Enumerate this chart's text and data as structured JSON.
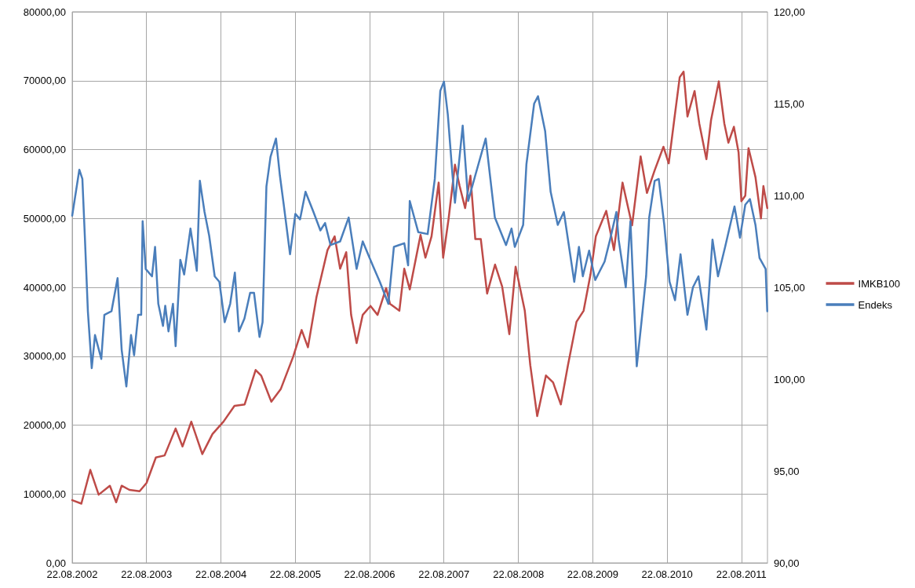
{
  "chart_data": {
    "type": "line",
    "legend": "right",
    "grid": true,
    "marker": "none",
    "line_style": "solid",
    "xlim": [
      "2002-08-22",
      "2011-12-28"
    ],
    "xticks": [
      {
        "value": "2002-08-22",
        "label": "22.08.2002"
      },
      {
        "value": "2003-08-22",
        "label": "22.08.2003"
      },
      {
        "value": "2004-08-22",
        "label": "22.08.2004"
      },
      {
        "value": "2005-08-22",
        "label": "22.08.2005"
      },
      {
        "value": "2006-08-22",
        "label": "22.08.2006"
      },
      {
        "value": "2007-08-22",
        "label": "22.08.2007"
      },
      {
        "value": "2008-08-22",
        "label": "22.08.2008"
      },
      {
        "value": "2009-08-22",
        "label": "22.08.2009"
      },
      {
        "value": "2010-08-22",
        "label": "22.08.2010"
      },
      {
        "value": "2011-08-22",
        "label": "22.08.2011"
      }
    ],
    "ylim": [
      0,
      80000
    ],
    "yticks": [
      {
        "value": 0,
        "label": "0,00"
      },
      {
        "value": 10000,
        "label": "10000,00"
      },
      {
        "value": 20000,
        "label": "20000,00"
      },
      {
        "value": 30000,
        "label": "30000,00"
      },
      {
        "value": 40000,
        "label": "40000,00"
      },
      {
        "value": 50000,
        "label": "50000,00"
      },
      {
        "value": 60000,
        "label": "60000,00"
      },
      {
        "value": 70000,
        "label": "70000,00"
      },
      {
        "value": 80000,
        "label": "80000,00"
      }
    ],
    "y2lim": [
      90,
      120
    ],
    "y2ticks": [
      {
        "value": 90,
        "label": "90,00"
      },
      {
        "value": 95,
        "label": "95,00"
      },
      {
        "value": 100,
        "label": "100,00"
      },
      {
        "value": 105,
        "label": "105,00"
      },
      {
        "value": 110,
        "label": "110,00"
      },
      {
        "value": 115,
        "label": "115,00"
      },
      {
        "value": 120,
        "label": "120,00"
      }
    ],
    "series": [
      {
        "name": "IMKB100",
        "color": "#be4b48",
        "x": [
          "2002-08-22",
          "2002-10-06",
          "2002-11-19",
          "2002-12-30",
          "2003-02-23",
          "2003-03-26",
          "2003-04-22",
          "2003-05-30",
          "2003-07-19",
          "2003-08-22",
          "2003-10-07",
          "2003-11-19",
          "2004-01-12",
          "2004-02-15",
          "2004-03-29",
          "2004-05-22",
          "2004-07-11",
          "2004-09-03",
          "2004-10-27",
          "2004-12-16",
          "2005-02-08",
          "2005-03-07",
          "2005-04-26",
          "2005-06-11",
          "2005-08-11",
          "2005-09-22",
          "2005-10-23",
          "2005-12-04",
          "2006-01-27",
          "2006-03-03",
          "2006-03-30",
          "2006-04-29",
          "2006-05-23",
          "2006-06-19",
          "2006-07-19",
          "2006-08-26",
          "2006-09-30",
          "2006-11-11",
          "2006-11-30",
          "2007-01-15",
          "2007-02-08",
          "2007-03-07",
          "2007-04-29",
          "2007-05-23",
          "2007-06-22",
          "2007-07-27",
          "2007-08-18",
          "2007-09-14",
          "2007-10-15",
          "2007-11-07",
          "2007-12-04",
          "2007-12-30",
          "2008-01-23",
          "2008-02-19",
          "2008-03-21",
          "2008-04-29",
          "2008-06-03",
          "2008-07-08",
          "2008-08-08",
          "2008-09-22",
          "2008-10-19",
          "2008-11-22",
          "2009-01-04",
          "2009-02-08",
          "2009-03-18",
          "2009-04-22",
          "2009-06-03",
          "2009-07-08",
          "2009-08-11",
          "2009-09-06",
          "2009-10-27",
          "2009-12-04",
          "2010-01-15",
          "2010-03-03",
          "2010-04-14",
          "2010-05-15",
          "2010-06-22",
          "2010-08-04",
          "2010-08-30",
          "2010-09-26",
          "2010-10-23",
          "2010-11-11",
          "2010-11-30",
          "2011-01-04",
          "2011-01-27",
          "2011-03-03",
          "2011-03-26",
          "2011-05-03",
          "2011-05-30",
          "2011-06-19",
          "2011-07-16",
          "2011-08-08",
          "2011-08-22",
          "2011-09-10",
          "2011-09-26",
          "2011-10-30",
          "2011-11-26",
          "2011-12-08",
          "2011-12-27"
        ],
        "values": [
          9100,
          8600,
          13500,
          9900,
          11200,
          8800,
          11200,
          10600,
          10400,
          11600,
          15300,
          15600,
          19500,
          16900,
          20500,
          15800,
          18700,
          20500,
          22800,
          23000,
          28000,
          27200,
          23400,
          25200,
          29900,
          33800,
          31300,
          38600,
          45400,
          47400,
          42700,
          45100,
          36000,
          31900,
          36000,
          37300,
          36000,
          39900,
          37600,
          36600,
          42700,
          39700,
          47600,
          44300,
          47400,
          55200,
          44300,
          50000,
          57800,
          54700,
          51500,
          56200,
          47000,
          47000,
          39100,
          43300,
          40100,
          33200,
          43000,
          36600,
          28700,
          21300,
          27200,
          26200,
          23000,
          28700,
          35000,
          36600,
          41900,
          47400,
          51100,
          45400,
          55200,
          49000,
          59000,
          53700,
          57000,
          60400,
          58000,
          64300,
          70500,
          71300,
          64800,
          68500,
          63800,
          58600,
          64300,
          69900,
          63800,
          61000,
          63300,
          59600,
          52500,
          53300,
          60200,
          56000,
          50000,
          54700,
          51500
        ]
      },
      {
        "name": "Endeks",
        "color": "#4a7ebb",
        "axis": "y2",
        "x": [
          "2002-08-22",
          "2002-09-26",
          "2002-10-11",
          "2002-10-23",
          "2002-11-07",
          "2002-11-26",
          "2002-12-12",
          "2003-01-12",
          "2003-01-27",
          "2003-03-03",
          "2003-04-02",
          "2003-04-22",
          "2003-05-15",
          "2003-06-07",
          "2003-06-22",
          "2003-07-12",
          "2003-07-27",
          "2003-08-03",
          "2003-08-18",
          "2003-09-18",
          "2003-10-03",
          "2003-10-19",
          "2003-11-11",
          "2003-11-22",
          "2003-12-08",
          "2003-12-30",
          "2004-01-12",
          "2004-02-04",
          "2004-02-23",
          "2004-03-25",
          "2004-04-25",
          "2004-05-10",
          "2004-06-02",
          "2004-06-25",
          "2004-07-22",
          "2004-08-14",
          "2004-09-09",
          "2004-10-06",
          "2004-10-29",
          "2004-11-18",
          "2004-12-15",
          "2005-01-12",
          "2005-01-31",
          "2005-02-27",
          "2005-03-14",
          "2005-04-02",
          "2005-04-22",
          "2005-05-19",
          "2005-06-07",
          "2005-06-26",
          "2005-07-27",
          "2005-08-22",
          "2005-09-14",
          "2005-10-11",
          "2005-11-19",
          "2005-12-23",
          "2006-01-15",
          "2006-02-11",
          "2006-03-30",
          "2006-05-11",
          "2006-06-19",
          "2006-07-19",
          "2006-09-06",
          "2006-10-11",
          "2006-11-22",
          "2006-12-19",
          "2007-02-08",
          "2007-02-27",
          "2007-03-07",
          "2007-04-18",
          "2007-06-03",
          "2007-07-08",
          "2007-08-04",
          "2007-08-22",
          "2007-09-10",
          "2007-10-03",
          "2007-10-15",
          "2007-11-22",
          "2007-12-19",
          "2008-01-23",
          "2008-03-14",
          "2008-04-28",
          "2008-06-22",
          "2008-07-19",
          "2008-08-04",
          "2008-09-14",
          "2008-09-30",
          "2008-11-07",
          "2008-11-26",
          "2008-12-31",
          "2009-01-27",
          "2009-03-03",
          "2009-04-02",
          "2009-05-23",
          "2009-06-15",
          "2009-07-04",
          "2009-08-04",
          "2009-09-03",
          "2009-10-19",
          "2009-11-15",
          "2009-12-16",
          "2009-12-27",
          "2010-01-31",
          "2010-02-23",
          "2010-03-26",
          "2010-04-18",
          "2010-05-11",
          "2010-05-26",
          "2010-06-22",
          "2010-07-12",
          "2010-08-08",
          "2010-09-03",
          "2010-09-30",
          "2010-10-27",
          "2010-11-30",
          "2010-12-27",
          "2011-01-23",
          "2011-03-03",
          "2011-04-02",
          "2011-04-29",
          "2011-06-03",
          "2011-07-19",
          "2011-08-15",
          "2011-09-10",
          "2011-10-03",
          "2011-10-30",
          "2011-11-19",
          "2011-12-19",
          "2011-12-27"
        ],
        "values": [
          108.9,
          111.4,
          110.9,
          107.8,
          103.7,
          100.6,
          102.4,
          101.1,
          103.5,
          103.7,
          105.5,
          101.6,
          99.6,
          102.4,
          101.3,
          103.5,
          103.5,
          108.6,
          106.0,
          105.6,
          107.2,
          104.1,
          102.9,
          104.0,
          102.6,
          104.1,
          101.8,
          106.5,
          105.7,
          108.2,
          105.9,
          110.8,
          109.1,
          107.8,
          105.6,
          105.3,
          103.1,
          104.1,
          105.8,
          102.6,
          103.3,
          104.7,
          104.7,
          102.3,
          103.1,
          110.5,
          112.1,
          113.1,
          111.1,
          109.5,
          106.8,
          109.0,
          108.7,
          110.2,
          109.1,
          108.1,
          108.5,
          107.3,
          107.5,
          108.8,
          106.0,
          107.5,
          106.2,
          105.3,
          104.1,
          107.2,
          107.4,
          106.2,
          109.7,
          108.0,
          107.9,
          110.9,
          115.7,
          116.2,
          114.4,
          111.1,
          109.6,
          113.8,
          109.7,
          111.1,
          113.1,
          108.8,
          107.3,
          108.2,
          107.2,
          108.4,
          111.7,
          115.0,
          115.4,
          113.5,
          110.2,
          108.4,
          109.1,
          105.3,
          107.2,
          105.6,
          107.0,
          105.4,
          106.4,
          107.6,
          109.1,
          107.6,
          105.0,
          108.6,
          100.7,
          103.1,
          105.6,
          108.8,
          110.8,
          110.9,
          108.4,
          105.3,
          104.3,
          106.8,
          103.5,
          105.0,
          105.6,
          102.7,
          107.6,
          105.6,
          107.2,
          109.4,
          107.7,
          109.5,
          109.8,
          108.4,
          106.6,
          106.0,
          103.7
        ]
      }
    ]
  }
}
